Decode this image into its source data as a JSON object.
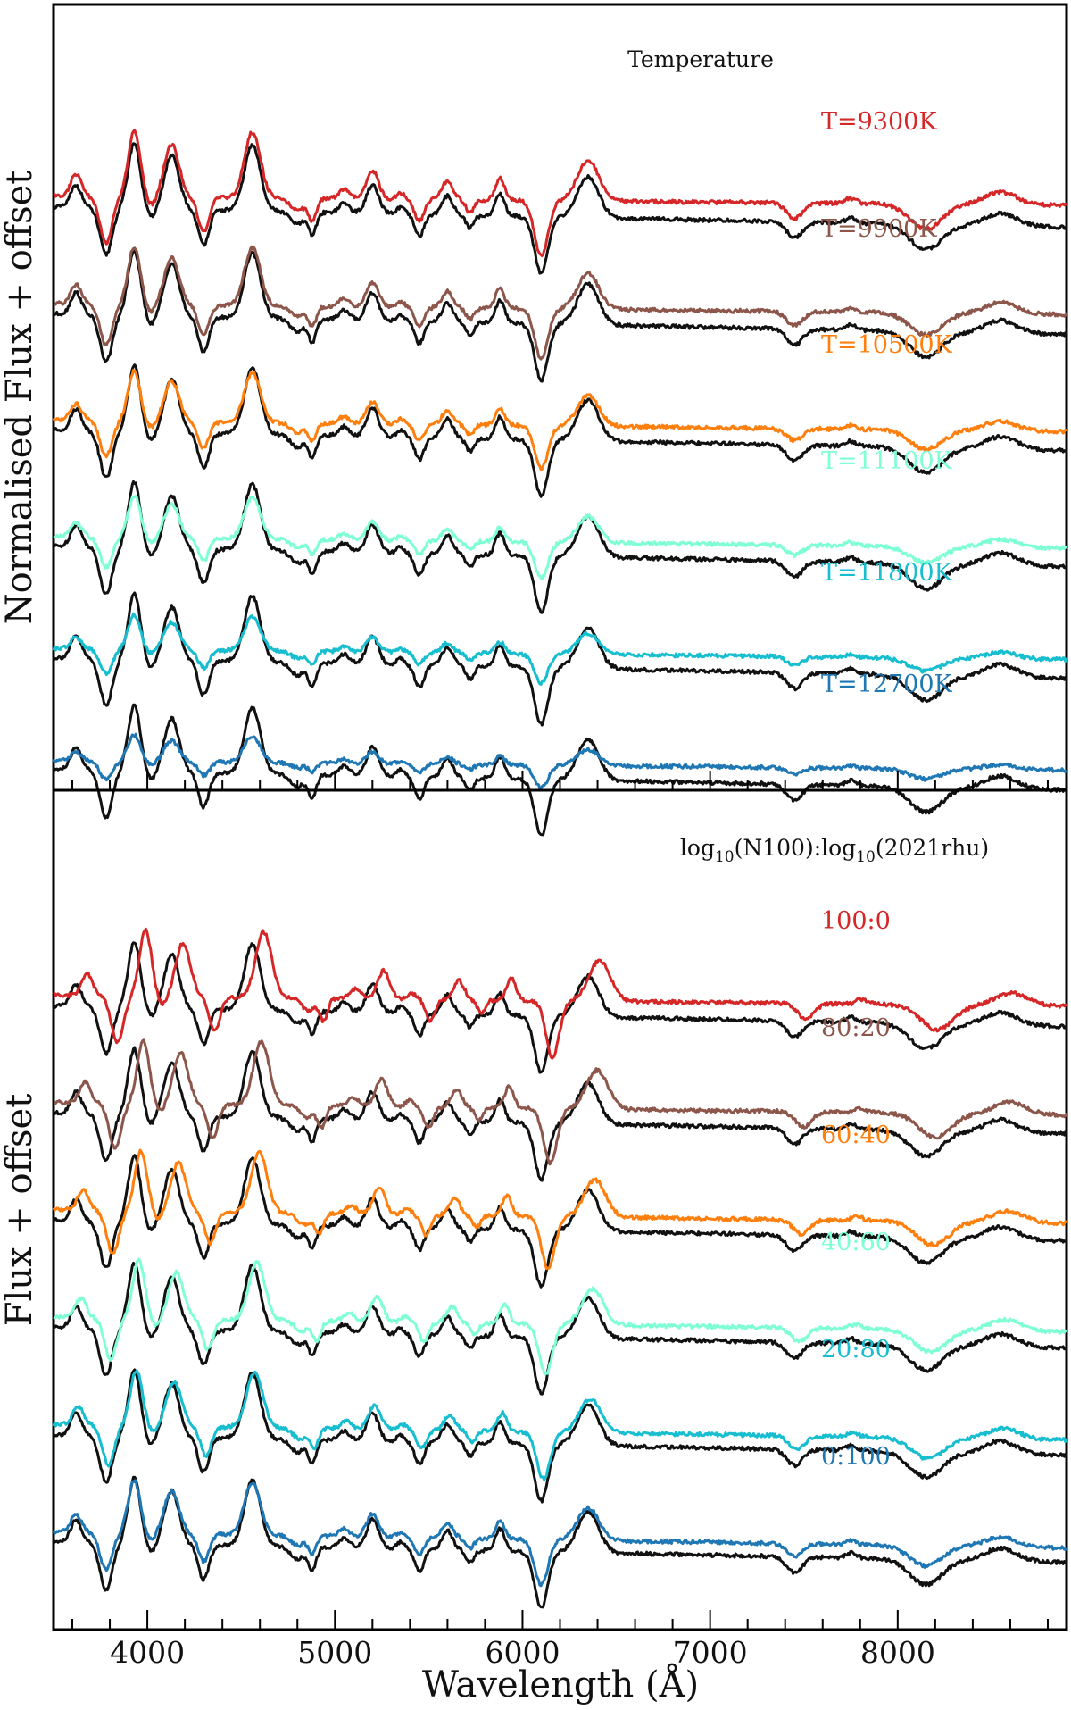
{
  "chart_data": [
    {
      "type": "line",
      "panel": "top",
      "title": "Temperature",
      "xlabel": "",
      "ylabel": "Normalised Flux + offset",
      "xlim": [
        3500,
        8900
      ],
      "reference_color": "#111111",
      "series": [
        {
          "name": "T=9300K",
          "color": "#d62728"
        },
        {
          "name": "T=9900K",
          "color": "#8c564b"
        },
        {
          "name": "T=10500K",
          "color": "#ff7f0e"
        },
        {
          "name": "T=11100K",
          "color": "#7fffd4"
        },
        {
          "name": "T=11800K",
          "color": "#17becf"
        },
        {
          "name": "T=12700K",
          "color": "#1f77b4"
        }
      ]
    },
    {
      "type": "line",
      "panel": "bottom",
      "title": "log10(N100):log10(2021rhu)",
      "title_parts": {
        "a": "log",
        "a_sub": "10",
        "b": "(N100):log",
        "b_sub": "10",
        "c": "(2021rhu)"
      },
      "xlabel": "Wavelength (Å)",
      "ylabel": "Flux + offset",
      "xlim": [
        3500,
        8900
      ],
      "xticks": [
        4000,
        5000,
        6000,
        7000,
        8000
      ],
      "xtick_labels": [
        "4000",
        "5000",
        "6000",
        "7000",
        "8000"
      ],
      "reference_color": "#111111",
      "series": [
        {
          "name": "100:0",
          "color": "#d62728"
        },
        {
          "name": "80:20",
          "color": "#8c564b"
        },
        {
          "name": "60:40",
          "color": "#ff7f0e"
        },
        {
          "name": "40:60",
          "color": "#7fffd4"
        },
        {
          "name": "20:80",
          "color": "#17becf"
        },
        {
          "name": "0:100",
          "color": "#1f77b4"
        }
      ]
    }
  ]
}
